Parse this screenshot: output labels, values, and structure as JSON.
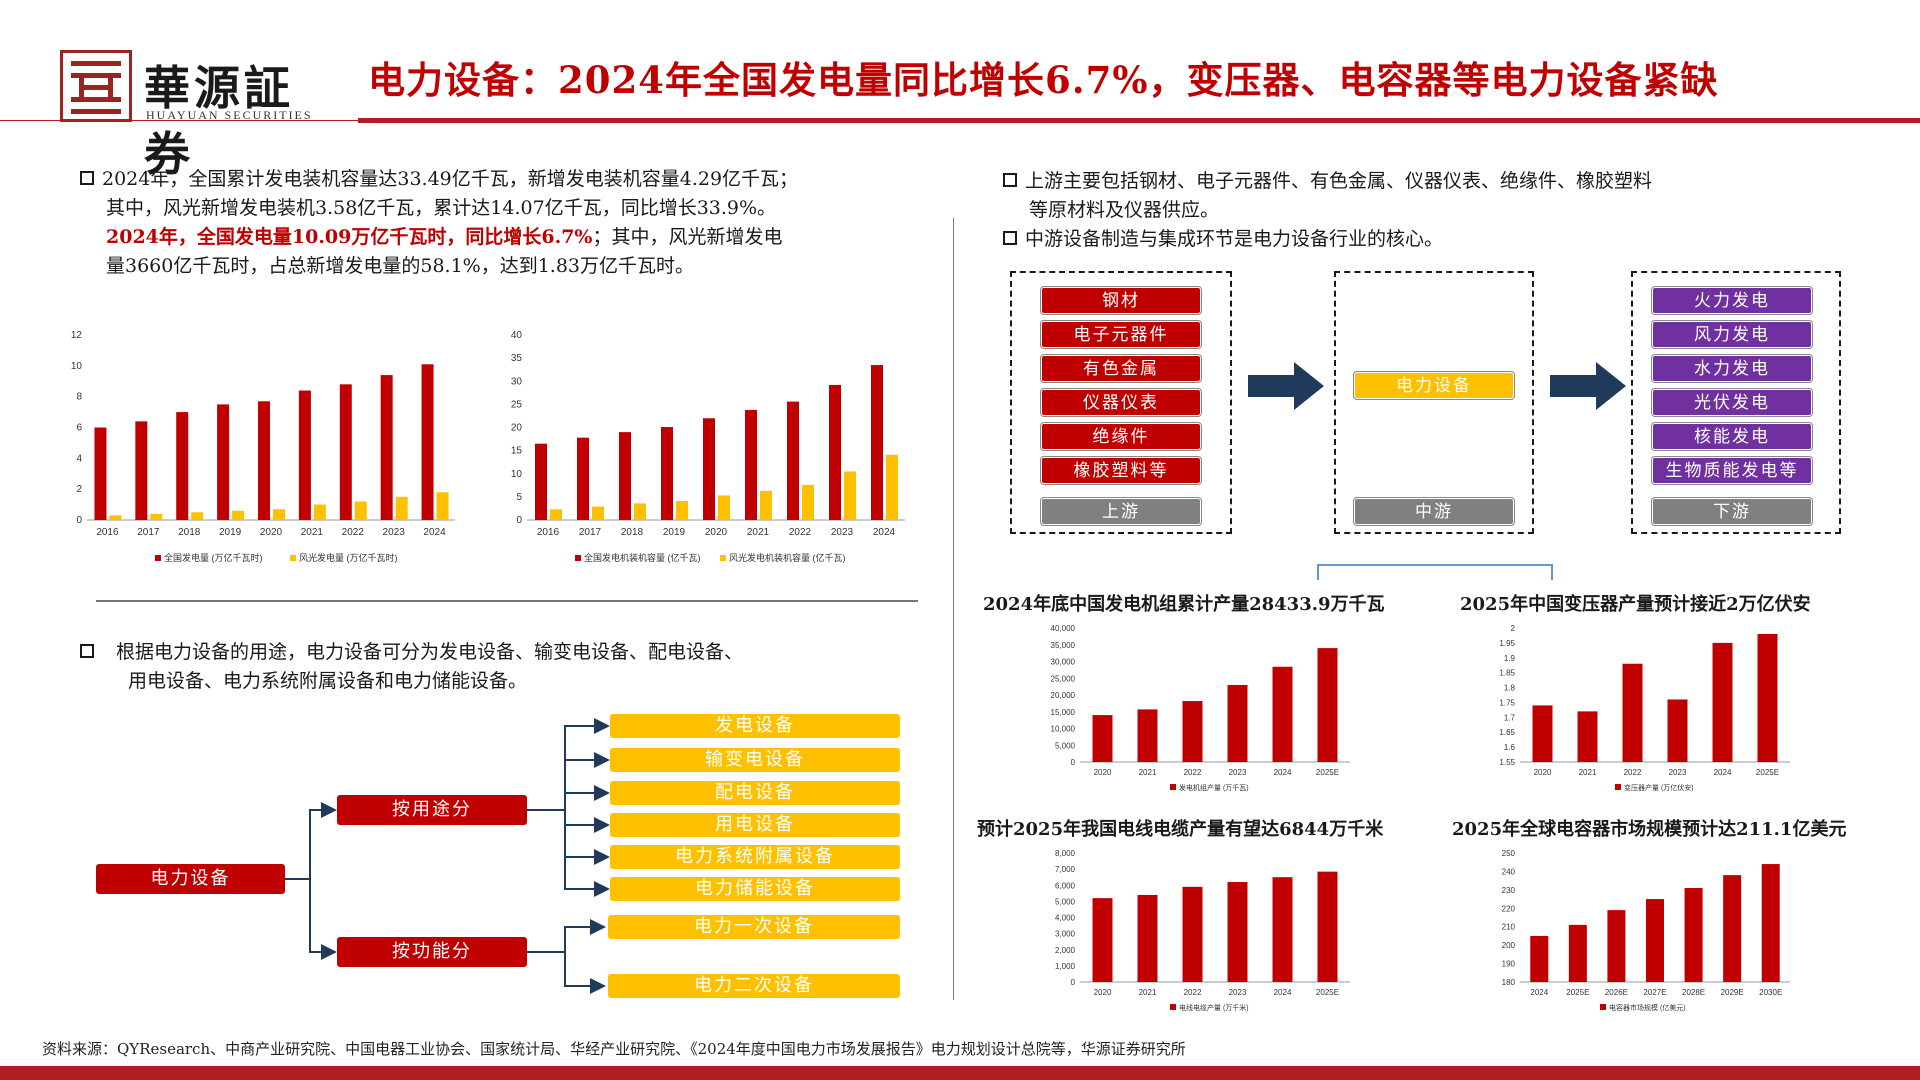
{
  "header": {
    "logo_cn": "華源証券",
    "logo_en": "HUAYUAN SECURITIES",
    "title": "电力设备：2024年全国发电量同比增长6.7%，变压器、电容器等电力设备紧缺"
  },
  "left_text": {
    "p1_l1": "2024年，全国累计发电装机容量达33.49亿千瓦，新增发电装机容量4.29亿千瓦；",
    "p1_l2": "其中，风光新增发电装机3.58亿千瓦，累计达14.07亿千瓦，同比增长33.9%。",
    "p1_l3_red": "2024年，全国发电量10.09万亿千瓦时，同比增长6.7%",
    "p1_l3_rest": "；其中，风光新增发电",
    "p1_l4": "量3660亿千瓦时，占总新增发电量的58.1%，达到1.83万亿千瓦时。",
    "p2_l1": "根据电力设备的用途，电力设备可分为发电设备、输变电设备、配电设备、",
    "p2_l2": "用电设备、电力系统附属设备和电力储能设备。"
  },
  "right_text": {
    "p1_l1": "上游主要包括钢材、电子元器件、有色金属、仪器仪表、绝缘件、橡胶塑料",
    "p1_l2": "等原材料及仪器供应。",
    "p2": "中游设备制造与集成环节是电力设备行业的核心。"
  },
  "chain": {
    "upstream_items": [
      "钢材",
      "电子元器件",
      "有色金属",
      "仪器仪表",
      "绝缘件",
      "橡胶塑料等"
    ],
    "upstream_label": "上游",
    "midstream_item": "电力设备",
    "midstream_label": "中游",
    "downstream_items": [
      "火力发电",
      "风力发电",
      "水力发电",
      "光伏发电",
      "核能发电",
      "生物质能发电等"
    ],
    "downstream_label": "下游"
  },
  "tree": {
    "root": "电力设备",
    "branch1": "按用途分",
    "branch1_items": [
      "发电设备",
      "输变电设备",
      "配电设备",
      "用电设备",
      "电力系统附属设备",
      "电力储能设备"
    ],
    "branch2": "按功能分",
    "branch2_items": [
      "电力一次设备",
      "电力二次设备"
    ]
  },
  "mini_titles": {
    "c3": "2024年底中国发电机组累计产量28433.9万千瓦",
    "c4": "2025年中国变压器产量预计接近2万亿伏安",
    "c5": "预计2025年我国电线电缆产量有望达6844万千米",
    "c6": "2025年全球电容器市场规模预计达211.1亿美元"
  },
  "footer": "资料来源：QYResearch、中商产业研究院、中国电器工业协会、国家统计局、华经产业研究院、《2024年度中国电力市场发展报告》电力规划设计总院等，华源证券研究所",
  "colors": {
    "red": "#c00000",
    "yellow": "#ffc000",
    "purple": "#7030a0",
    "grey": "#808080",
    "navy": "#1f3a5a"
  },
  "chart_data": [
    {
      "type": "bar",
      "categories": [
        "2016",
        "2017",
        "2018",
        "2019",
        "2020",
        "2021",
        "2022",
        "2023",
        "2024"
      ],
      "series": [
        {
          "name": "全国发电量 (万亿千瓦时)",
          "values": [
            6.0,
            6.4,
            7.0,
            7.5,
            7.7,
            8.4,
            8.8,
            9.4,
            10.1
          ],
          "color": "#c00000"
        },
        {
          "name": "风光发电量 (万亿千瓦时)",
          "values": [
            0.3,
            0.4,
            0.5,
            0.6,
            0.7,
            1.0,
            1.2,
            1.5,
            1.8
          ],
          "color": "#ffc000"
        }
      ],
      "yticks": [
        "0",
        "2",
        "4",
        "6",
        "8",
        "10",
        "12"
      ],
      "ylim": [
        0,
        12
      ]
    },
    {
      "type": "bar",
      "categories": [
        "2016",
        "2017",
        "2018",
        "2019",
        "2020",
        "2021",
        "2022",
        "2023",
        "2024"
      ],
      "series": [
        {
          "name": "全国发电机装机容量 (亿千瓦)",
          "values": [
            16.5,
            17.8,
            19.0,
            20.1,
            22.0,
            23.8,
            25.6,
            29.2,
            33.5
          ],
          "color": "#c00000"
        },
        {
          "name": "风光发电机装机容量 (亿千瓦)",
          "values": [
            2.3,
            2.9,
            3.6,
            4.1,
            5.3,
            6.3,
            7.6,
            10.5,
            14.1
          ],
          "color": "#ffc000"
        }
      ],
      "yticks": [
        "0",
        "5",
        "10",
        "15",
        "20",
        "25",
        "30",
        "35",
        "40"
      ],
      "ylim": [
        0,
        40
      ]
    },
    {
      "type": "bar",
      "categories": [
        "2020",
        "2021",
        "2022",
        "2023",
        "2024",
        "2025E"
      ],
      "series": [
        {
          "name": "发电机组产量 (万千瓦)",
          "values": [
            14000,
            15700,
            18200,
            23000,
            28434,
            34000
          ],
          "color": "#c00000"
        }
      ],
      "yticks": [
        "0",
        "5,000",
        "10,000",
        "15,000",
        "20,000",
        "25,000",
        "30,000",
        "35,000",
        "40,000"
      ],
      "ylim": [
        0,
        40000
      ]
    },
    {
      "type": "bar",
      "categories": [
        "2020",
        "2021",
        "2022",
        "2023",
        "2024",
        "2025E"
      ],
      "series": [
        {
          "name": "变压器产量 (万亿伏安)",
          "values": [
            1.74,
            1.72,
            1.88,
            1.76,
            1.95,
            1.98
          ],
          "color": "#c00000"
        }
      ],
      "yticks": [
        "1.55",
        "1.6",
        "1.65",
        "1.7",
        "1.75",
        "1.8",
        "1.85",
        "1.9",
        "1.95",
        "2"
      ],
      "ylim": [
        1.55,
        2
      ]
    },
    {
      "type": "bar",
      "categories": [
        "2020",
        "2021",
        "2022",
        "2023",
        "2024",
        "2025E"
      ],
      "series": [
        {
          "name": "电线电缆产量 (万千米)",
          "values": [
            5200,
            5400,
            5900,
            6200,
            6500,
            6844
          ],
          "color": "#c00000"
        }
      ],
      "yticks": [
        "0",
        "1,000",
        "2,000",
        "3,000",
        "4,000",
        "5,000",
        "6,000",
        "7,000",
        "8,000"
      ],
      "ylim": [
        0,
        8000
      ]
    },
    {
      "type": "bar",
      "categories": [
        "2024",
        "2025E",
        "2026E",
        "2027E",
        "2028E",
        "2029E",
        "2030E"
      ],
      "series": [
        {
          "name": "电容器市场规模 (亿美元)",
          "values": [
            205,
            211,
            219,
            225,
            231,
            238,
            244
          ],
          "color": "#c00000"
        }
      ],
      "yticks": [
        "180",
        "190",
        "200",
        "210",
        "220",
        "230",
        "240",
        "250"
      ],
      "ylim": [
        180,
        250
      ]
    }
  ]
}
